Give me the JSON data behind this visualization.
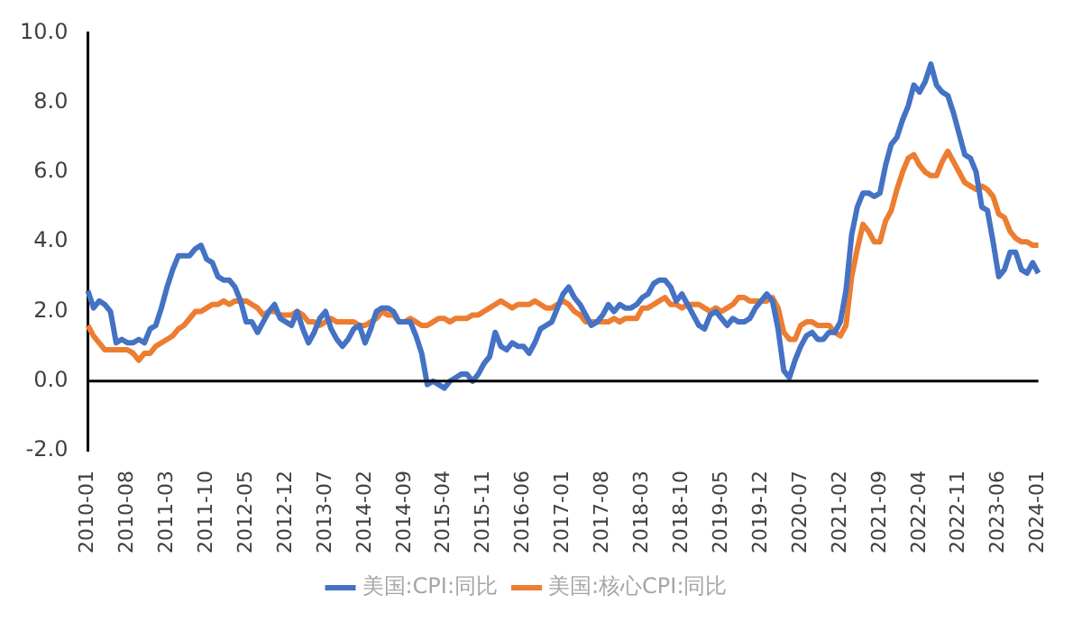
{
  "chart_data": {
    "type": "line",
    "categories": [
      "2010-01",
      null,
      null,
      null,
      null,
      null,
      null,
      "2010-08",
      null,
      null,
      null,
      null,
      null,
      null,
      "2011-03",
      null,
      null,
      null,
      null,
      null,
      null,
      "2011-10",
      null,
      null,
      null,
      null,
      null,
      null,
      "2012-05",
      null,
      null,
      null,
      null,
      null,
      null,
      "2012-12",
      null,
      null,
      null,
      null,
      null,
      null,
      "2013-07",
      null,
      null,
      null,
      null,
      null,
      null,
      "2014-02",
      null,
      null,
      null,
      null,
      null,
      null,
      "2014-09",
      null,
      null,
      null,
      null,
      null,
      null,
      "2015-04",
      null,
      null,
      null,
      null,
      null,
      null,
      "2015-11",
      null,
      null,
      null,
      null,
      null,
      null,
      "2016-06",
      null,
      null,
      null,
      null,
      null,
      null,
      "2017-01",
      null,
      null,
      null,
      null,
      null,
      null,
      "2017-08",
      null,
      null,
      null,
      null,
      null,
      null,
      "2018-03",
      null,
      null,
      null,
      null,
      null,
      null,
      "2018-10",
      null,
      null,
      null,
      null,
      null,
      null,
      "2019-05",
      null,
      null,
      null,
      null,
      null,
      null,
      "2019-12",
      null,
      null,
      null,
      null,
      null,
      null,
      "2020-07",
      null,
      null,
      null,
      null,
      null,
      null,
      "2021-02",
      null,
      null,
      null,
      null,
      null,
      null,
      "2021-09",
      null,
      null,
      null,
      null,
      null,
      null,
      "2022-04",
      null,
      null,
      null,
      null,
      null,
      null,
      "2022-11",
      null,
      null,
      null,
      null,
      null,
      null,
      "2023-06",
      null,
      null,
      null,
      null,
      null,
      null,
      "2024-01"
    ],
    "series": [
      {
        "name": "美国:CPI:同比",
        "color": "#4472c4",
        "values": [
          2.6,
          2.1,
          2.3,
          2.2,
          2.0,
          1.1,
          1.2,
          1.1,
          1.1,
          1.2,
          1.1,
          1.5,
          1.6,
          2.1,
          2.7,
          3.2,
          3.6,
          3.6,
          3.6,
          3.8,
          3.9,
          3.5,
          3.4,
          3.0,
          2.9,
          2.9,
          2.7,
          2.3,
          1.7,
          1.7,
          1.4,
          1.7,
          2.0,
          2.2,
          1.8,
          1.7,
          1.6,
          2.0,
          1.5,
          1.1,
          1.4,
          1.8,
          2.0,
          1.5,
          1.2,
          1.0,
          1.2,
          1.5,
          1.6,
          1.1,
          1.5,
          2.0,
          2.1,
          2.1,
          2.0,
          1.7,
          1.7,
          1.7,
          1.3,
          0.8,
          -0.1,
          0.0,
          -0.1,
          -0.2,
          0.0,
          0.1,
          0.2,
          0.2,
          0.0,
          0.2,
          0.5,
          0.7,
          1.4,
          1.0,
          0.9,
          1.1,
          1.0,
          1.0,
          0.8,
          1.1,
          1.5,
          1.6,
          1.7,
          2.1,
          2.5,
          2.7,
          2.4,
          2.2,
          1.9,
          1.6,
          1.7,
          1.9,
          2.2,
          2.0,
          2.2,
          2.1,
          2.1,
          2.2,
          2.4,
          2.5,
          2.8,
          2.9,
          2.9,
          2.7,
          2.3,
          2.5,
          2.2,
          1.9,
          1.6,
          1.5,
          1.9,
          2.0,
          1.8,
          1.6,
          1.8,
          1.7,
          1.7,
          1.8,
          2.1,
          2.3,
          2.5,
          2.3,
          1.5,
          0.3,
          0.1,
          0.6,
          1.0,
          1.3,
          1.4,
          1.2,
          1.2,
          1.4,
          1.4,
          1.7,
          2.6,
          4.2,
          5.0,
          5.4,
          5.4,
          5.3,
          5.4,
          6.2,
          6.8,
          7.0,
          7.5,
          7.9,
          8.5,
          8.3,
          8.6,
          9.1,
          8.5,
          8.3,
          8.2,
          7.7,
          7.1,
          6.5,
          6.4,
          6.0,
          5.0,
          4.9,
          4.0,
          3.0,
          3.2,
          3.7,
          3.7,
          3.2,
          3.1,
          3.4,
          3.1
        ]
      },
      {
        "name": "美国:核心CPI:同比",
        "color": "#ed7d31",
        "values": [
          1.6,
          1.3,
          1.1,
          0.9,
          0.9,
          0.9,
          0.9,
          0.9,
          0.8,
          0.6,
          0.8,
          0.8,
          1.0,
          1.1,
          1.2,
          1.3,
          1.5,
          1.6,
          1.8,
          2.0,
          2.0,
          2.1,
          2.2,
          2.2,
          2.3,
          2.2,
          2.3,
          2.3,
          2.3,
          2.2,
          2.1,
          1.9,
          2.0,
          2.0,
          1.9,
          1.9,
          1.9,
          2.0,
          1.9,
          1.7,
          1.7,
          1.6,
          1.7,
          1.8,
          1.7,
          1.7,
          1.7,
          1.7,
          1.6,
          1.6,
          1.7,
          1.8,
          2.0,
          1.9,
          1.9,
          1.7,
          1.7,
          1.8,
          1.7,
          1.6,
          1.6,
          1.7,
          1.8,
          1.8,
          1.7,
          1.8,
          1.8,
          1.8,
          1.9,
          1.9,
          2.0,
          2.1,
          2.2,
          2.3,
          2.2,
          2.1,
          2.2,
          2.2,
          2.2,
          2.3,
          2.2,
          2.1,
          2.1,
          2.2,
          2.3,
          2.2,
          2.0,
          1.9,
          1.7,
          1.7,
          1.7,
          1.7,
          1.7,
          1.8,
          1.7,
          1.8,
          1.8,
          1.8,
          2.1,
          2.1,
          2.2,
          2.3,
          2.4,
          2.2,
          2.2,
          2.1,
          2.2,
          2.2,
          2.2,
          2.1,
          2.0,
          2.1,
          2.0,
          2.1,
          2.2,
          2.4,
          2.4,
          2.3,
          2.3,
          2.3,
          2.3,
          2.4,
          2.1,
          1.4,
          1.2,
          1.2,
          1.6,
          1.7,
          1.7,
          1.6,
          1.6,
          1.6,
          1.4,
          1.3,
          1.6,
          3.0,
          3.8,
          4.5,
          4.3,
          4.0,
          4.0,
          4.6,
          4.9,
          5.5,
          6.0,
          6.4,
          6.5,
          6.2,
          6.0,
          5.9,
          5.9,
          6.3,
          6.6,
          6.3,
          6.0,
          5.7,
          5.6,
          5.5,
          5.6,
          5.5,
          5.3,
          4.8,
          4.7,
          4.3,
          4.1,
          4.0,
          4.0,
          3.9,
          3.9
        ]
      }
    ],
    "ylim": [
      -2,
      10
    ],
    "yticks": [
      {
        "value": -2,
        "label": "-2.0"
      },
      {
        "value": 0,
        "label": "0.0"
      },
      {
        "value": 2,
        "label": "2.0"
      },
      {
        "value": 4,
        "label": "4.0"
      },
      {
        "value": 6,
        "label": "6.0"
      },
      {
        "value": 8,
        "label": "8.0"
      },
      {
        "value": 10,
        "label": "10.0"
      }
    ],
    "ref_lines": [
      {
        "axis": "y",
        "value": 0,
        "color": "#000000"
      }
    ],
    "legend": "bottom",
    "marker": "none",
    "line_style": "solid"
  }
}
